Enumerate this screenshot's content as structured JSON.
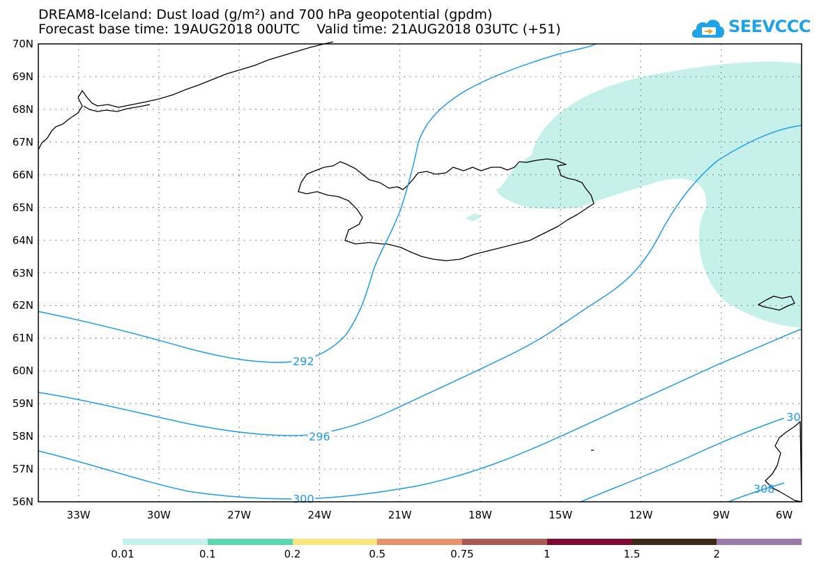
{
  "title": {
    "line1": "DREAM8-Iceland: Dust load (g/m²) and 700 hPa geopotential (gpdm)",
    "line2": "Forecast base time: 19AUG2018 00UTC    Valid time: 21AUG2018 03UTC (+51)"
  },
  "logo": {
    "text": "SEEVCCC",
    "icon": "cloud-logo-icon"
  },
  "map": {
    "projection": "lat-lon",
    "lon_range": [
      -34.5,
      -6
    ],
    "lat_range": [
      56,
      70
    ],
    "grid": "dotted",
    "lat_ticks": [
      "70N",
      "69N",
      "68N",
      "67N",
      "66N",
      "65N",
      "64N",
      "63N",
      "62N",
      "61N",
      "60N",
      "59N",
      "58N",
      "57N",
      "56N"
    ],
    "lon_ticks": [
      "33W",
      "30W",
      "27W",
      "24W",
      "21W",
      "18W",
      "15W",
      "12W",
      "9W",
      "6W"
    ],
    "contour_color": "#1e9be6",
    "dust_color": "#c6f0ea",
    "coast_color": "#000000",
    "contour_labels": [
      {
        "text": "292",
        "lon": -24.6,
        "lat": 60.3
      },
      {
        "text": "296",
        "lon": -24.0,
        "lat": 58.0
      },
      {
        "text": "300",
        "lon": -24.6,
        "lat": 56.1
      },
      {
        "text": "30",
        "lon": -6.3,
        "lat": 58.6
      },
      {
        "text": "308",
        "lon": -7.4,
        "lat": 56.4
      }
    ]
  },
  "colorbar": {
    "colors": [
      "#c6f0ea",
      "#5cd6ae",
      "#f7e67e",
      "#e8926a",
      "#a85b52",
      "#7f0a2f",
      "#3c2a17",
      "#9b79a8"
    ],
    "labels": [
      "0.01",
      "0.1",
      "0.2",
      "0.5",
      "0.75",
      "1",
      "1.5",
      "2"
    ]
  }
}
